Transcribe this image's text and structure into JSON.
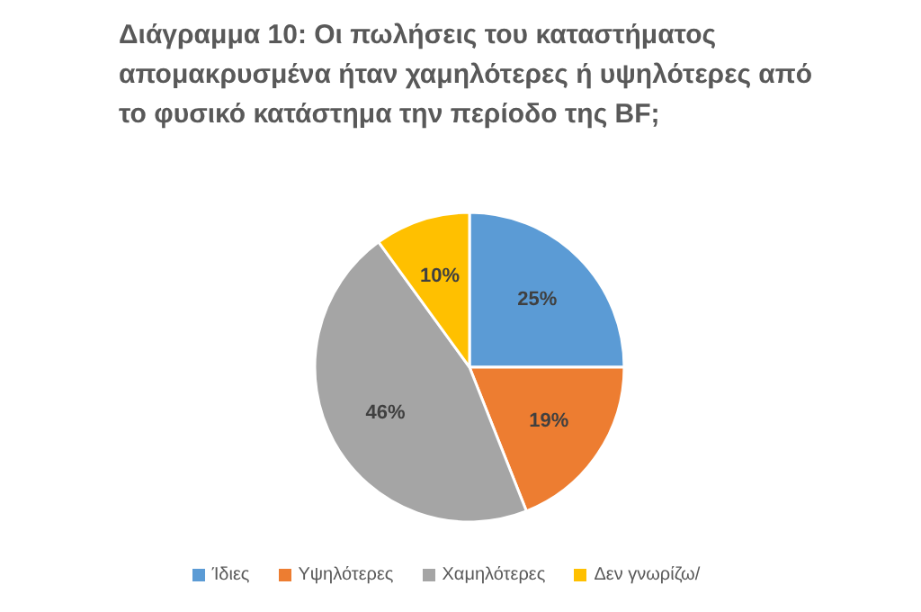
{
  "chart_data": {
    "type": "pie",
    "title": "Διάγραμμα 10: Οι πωλήσεις του καταστήματος απομακρυσμένα ήταν χαμηλότερες ή υψηλότερες από το φυσικό κατάστημα την περίοδο της BF;",
    "categories": [
      "Ίδιες",
      "Υψηλότερες",
      "Χαμηλότερες",
      "Δεν γνωρίζω/"
    ],
    "values": [
      25,
      19,
      46,
      10
    ],
    "colors": [
      "#5b9bd5",
      "#ed7d31",
      "#a5a5a5",
      "#ffc000"
    ],
    "value_labels": [
      "25%",
      "19%",
      "46%",
      "10%"
    ],
    "legend": "bottom"
  }
}
